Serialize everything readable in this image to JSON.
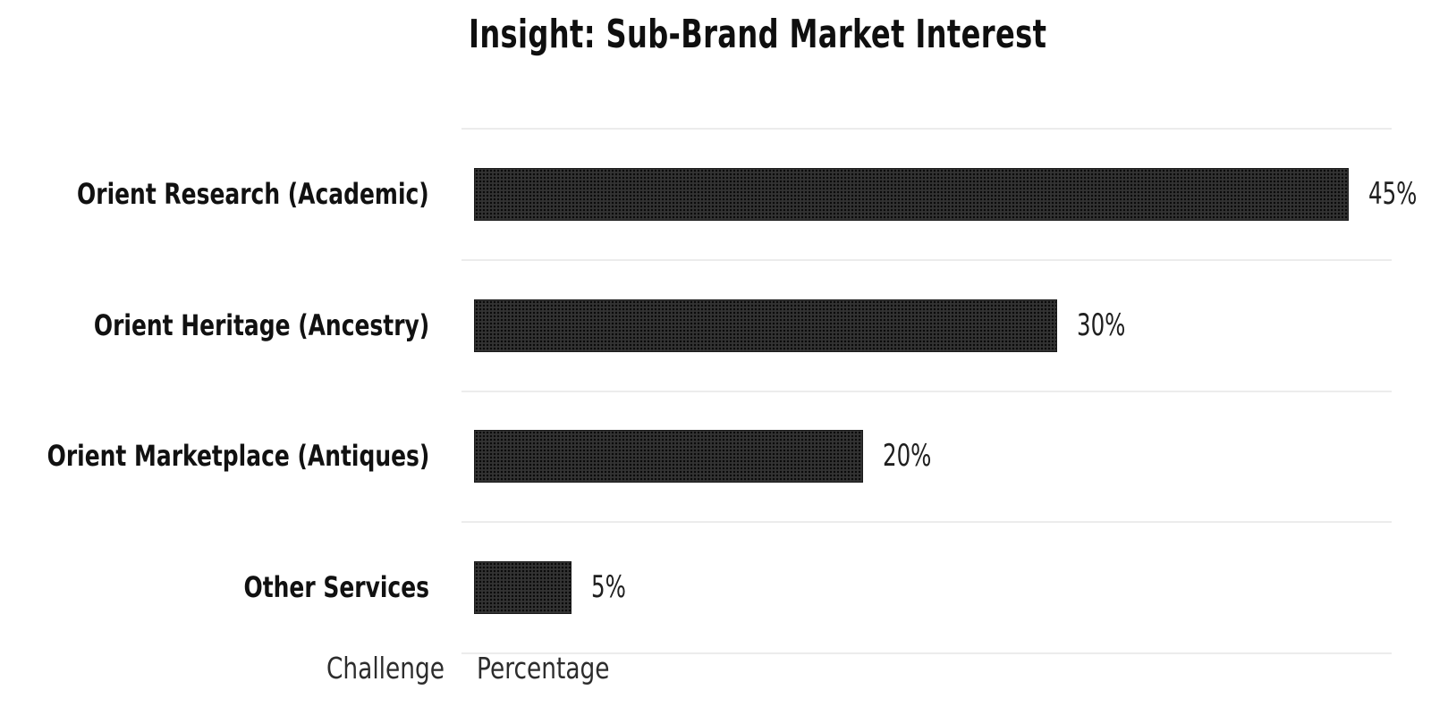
{
  "title": "Insight: Sub-Brand Market Interest",
  "chart_data": {
    "type": "bar",
    "orientation": "horizontal",
    "title": "Insight: Sub-Brand Market Interest",
    "categories": [
      "Orient Research (Academic)",
      "Orient Heritage (Ancestry)",
      "Orient Marketplace (Antiques)",
      "Other Services"
    ],
    "values": [
      45,
      30,
      20,
      5
    ],
    "value_labels": [
      "45%",
      "30%",
      "20%",
      "5%"
    ],
    "xlabel": "Percentage",
    "ylabel": "Challenge",
    "xlim": [
      0,
      47.25
    ],
    "grid": "horizontal-row-separators",
    "gridline_color": "#ececec",
    "bar_color": "#333333",
    "bar_pattern": "black-dot-grid",
    "value_label_position": "right-of-bar",
    "legend": "none",
    "background_color": "#ffffff"
  },
  "footer": {
    "category_column_label": "Challenge",
    "value_column_label": "Percentage"
  }
}
